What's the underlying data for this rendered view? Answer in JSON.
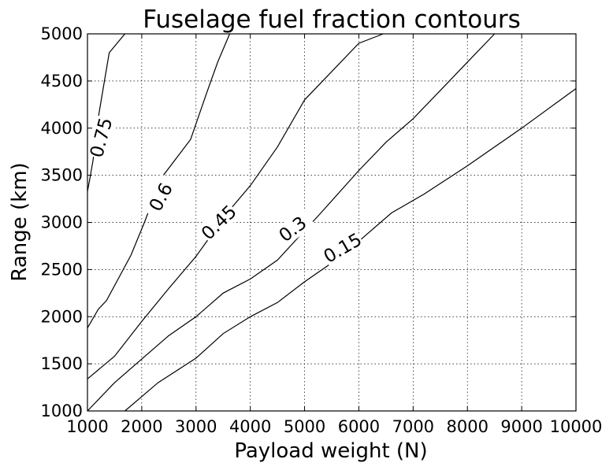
{
  "chart_data": {
    "type": "contour",
    "title": "Fuselage fuel fraction contours",
    "xlabel": "Payload weight (N)",
    "ylabel": "Range (km)",
    "xlim": [
      1000,
      10000
    ],
    "ylim": [
      1000,
      5000
    ],
    "xticks": [
      1000,
      2000,
      3000,
      4000,
      5000,
      6000,
      7000,
      8000,
      9000,
      10000
    ],
    "yticks": [
      1000,
      1500,
      2000,
      2500,
      3000,
      3500,
      4000,
      4500,
      5000
    ],
    "grid": true,
    "grid_style": "dotted",
    "line_color": "#000000",
    "contours": [
      {
        "level": "0.75",
        "points": [
          [
            1000,
            3330
          ],
          [
            1050,
            3480
          ],
          [
            1100,
            3650
          ],
          [
            1210,
            4150
          ],
          [
            1400,
            4800
          ],
          [
            1690,
            5000
          ]
        ],
        "label_at": [
          1250,
          3900
        ],
        "label_rot": -75
      },
      {
        "level": "0.6",
        "points": [
          [
            1000,
            1880
          ],
          [
            1200,
            2080
          ],
          [
            1350,
            2170
          ],
          [
            1800,
            2650
          ],
          [
            2050,
            3000
          ],
          [
            2200,
            3230
          ],
          [
            2400,
            3500
          ],
          [
            2900,
            3880
          ],
          [
            3200,
            4380
          ],
          [
            3400,
            4700
          ],
          [
            3620,
            5000
          ]
        ],
        "label_at": [
          2350,
          3270
        ],
        "label_rot": -62
      },
      {
        "level": "0.45",
        "points": [
          [
            1000,
            1340
          ],
          [
            1500,
            1580
          ],
          [
            2000,
            1950
          ],
          [
            2500,
            2300
          ],
          [
            3000,
            2640
          ],
          [
            3200,
            2800
          ],
          [
            3500,
            3050
          ],
          [
            4000,
            3390
          ],
          [
            4500,
            3800
          ],
          [
            5000,
            4300
          ],
          [
            5500,
            4600
          ],
          [
            6000,
            4900
          ],
          [
            6450,
            5000
          ]
        ],
        "label_at": [
          3420,
          3000
        ],
        "label_rot": -44
      },
      {
        "level": "0.3",
        "points": [
          [
            1000,
            1000
          ],
          [
            1500,
            1300
          ],
          [
            2000,
            1550
          ],
          [
            2500,
            1800
          ],
          [
            3000,
            2000
          ],
          [
            3500,
            2250
          ],
          [
            4000,
            2400
          ],
          [
            4500,
            2600
          ],
          [
            5300,
            3100
          ],
          [
            6000,
            3550
          ],
          [
            6500,
            3850
          ],
          [
            7000,
            4100
          ],
          [
            7500,
            4400
          ],
          [
            8000,
            4700
          ],
          [
            8500,
            5000
          ]
        ],
        "label_at": [
          4780,
          2930
        ],
        "label_rot": -37
      },
      {
        "level": "0.15",
        "points": [
          [
            1690,
            1000
          ],
          [
            2300,
            1300
          ],
          [
            3000,
            1560
          ],
          [
            3500,
            1820
          ],
          [
            4000,
            2000
          ],
          [
            4500,
            2150
          ],
          [
            5000,
            2370
          ],
          [
            5500,
            2570
          ],
          [
            6000,
            2800
          ],
          [
            6600,
            3100
          ],
          [
            7200,
            3300
          ],
          [
            8000,
            3600
          ],
          [
            9000,
            4000
          ],
          [
            10000,
            4420
          ]
        ],
        "label_at": [
          5700,
          2730
        ],
        "label_rot": -30
      }
    ]
  }
}
